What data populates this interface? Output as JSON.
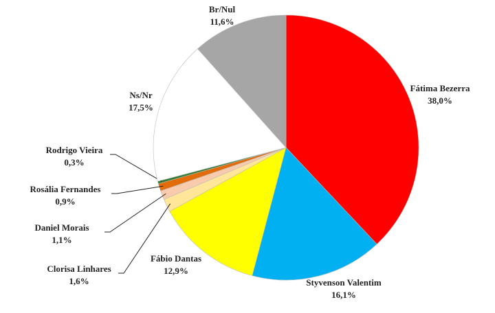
{
  "chart_data": {
    "type": "pie",
    "categories": [
      "Fátima Bezerra",
      "Styvenson Valentim",
      "Fábio Dantas",
      "Clorisa Linhares",
      "Daniel Morais",
      "Rosália Fernandes",
      "Rodrigo Vieira",
      "Ns/Nr",
      "Br/Nul"
    ],
    "values": [
      38.0,
      16.1,
      12.9,
      1.6,
      1.1,
      0.9,
      0.3,
      17.5,
      11.6
    ],
    "value_labels": [
      "38,0%",
      "16,1%",
      "12,9%",
      "1,6%",
      "1,1%",
      "0,9%",
      "0,3%",
      "17,5%",
      "11,6%"
    ],
    "colors": [
      "#ff0000",
      "#00b0f0",
      "#ffff00",
      "#ffe699",
      "#f8cbad",
      "#e36c0a",
      "#2e7d32",
      "#ffffff",
      "#a6a6a6"
    ]
  }
}
